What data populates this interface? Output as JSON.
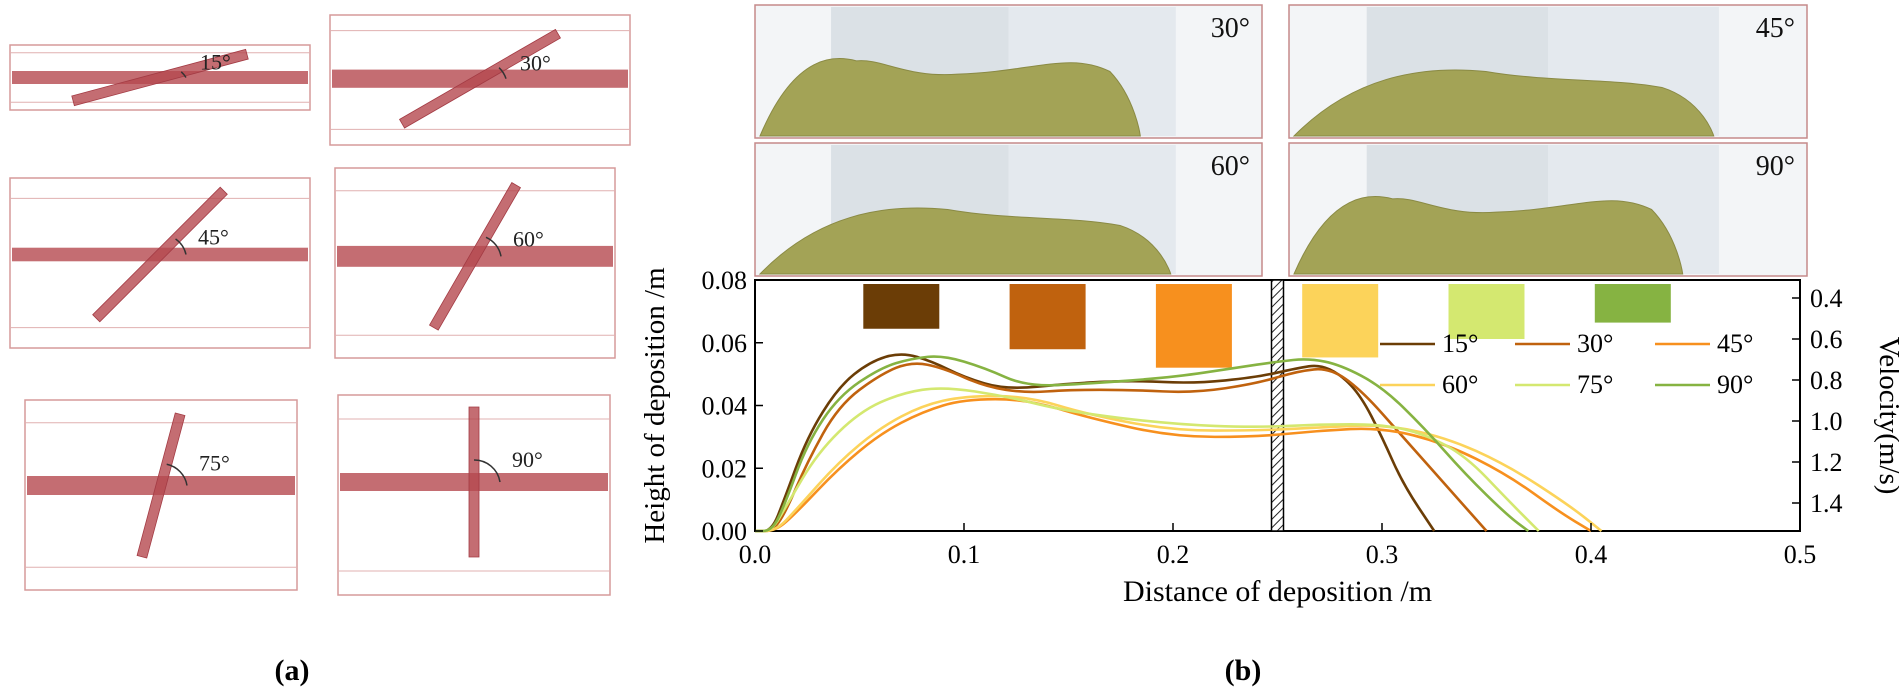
{
  "panel_a": {
    "label": "(a)",
    "diagrams": [
      {
        "angle": 15,
        "text": "15°"
      },
      {
        "angle": 30,
        "text": "30°"
      },
      {
        "angle": 45,
        "text": "45°"
      },
      {
        "angle": 60,
        "text": "60°"
      },
      {
        "angle": 75,
        "text": "75°"
      },
      {
        "angle": 90,
        "text": "90°"
      }
    ]
  },
  "panel_b": {
    "label": "(b)",
    "snapshots": [
      "30°",
      "45°",
      "60°",
      "90°"
    ]
  },
  "chart_data": {
    "type": "line",
    "xlabel": "Distance of deposition /m",
    "ylabel": "Height of deposition /m",
    "y2label": "Velocity(m/s)",
    "xlim": [
      0.0,
      0.5
    ],
    "ylim": [
      0.0,
      0.08
    ],
    "xticks": [
      "0.0",
      "0.1",
      "0.2",
      "0.3",
      "0.4",
      "0.5"
    ],
    "yticks": [
      "0.00",
      "0.02",
      "0.04",
      "0.06",
      "0.08"
    ],
    "y2ticks": [
      "0.4",
      "0.6",
      "0.8",
      "1.0",
      "1.2",
      "1.4"
    ],
    "y2lim": [
      0.3,
      1.5
    ],
    "obstacle_x": 0.25,
    "velocity_bars": [
      {
        "x": 0.07,
        "v": 0.55,
        "color": "#6b3d06"
      },
      {
        "x": 0.14,
        "v": 0.65,
        "color": "#c0620e"
      },
      {
        "x": 0.21,
        "v": 0.74,
        "color": "#f7901e"
      },
      {
        "x": 0.28,
        "v": 0.69,
        "color": "#fcd35a"
      },
      {
        "x": 0.35,
        "v": 0.6,
        "color": "#d4e870"
      },
      {
        "x": 0.42,
        "v": 0.52,
        "color": "#86b342"
      }
    ],
    "series": [
      {
        "name": "15°",
        "color": "#6b3d06",
        "x": [
          0.0,
          0.008,
          0.014,
          0.025,
          0.04,
          0.055,
          0.07,
          0.085,
          0.1,
          0.12,
          0.15,
          0.18,
          0.21,
          0.24,
          0.26,
          0.27,
          0.28,
          0.29,
          0.3,
          0.31,
          0.325
        ],
        "y": [
          0.0,
          0.0,
          0.01,
          0.03,
          0.046,
          0.054,
          0.057,
          0.054,
          0.049,
          0.045,
          0.047,
          0.048,
          0.047,
          0.049,
          0.052,
          0.053,
          0.05,
          0.043,
          0.03,
          0.015,
          0.0
        ]
      },
      {
        "name": "30°",
        "color": "#c0620e",
        "x": [
          0.0,
          0.008,
          0.014,
          0.025,
          0.04,
          0.06,
          0.075,
          0.09,
          0.11,
          0.13,
          0.15,
          0.18,
          0.21,
          0.24,
          0.26,
          0.275,
          0.29,
          0.31,
          0.33,
          0.35
        ],
        "y": [
          0.0,
          0.0,
          0.005,
          0.022,
          0.04,
          0.05,
          0.054,
          0.052,
          0.046,
          0.044,
          0.045,
          0.045,
          0.044,
          0.047,
          0.051,
          0.052,
          0.045,
          0.03,
          0.015,
          0.0
        ]
      },
      {
        "name": "45°",
        "color": "#f7901e",
        "x": [
          0.0,
          0.01,
          0.02,
          0.04,
          0.06,
          0.08,
          0.1,
          0.13,
          0.16,
          0.2,
          0.24,
          0.27,
          0.3,
          0.33,
          0.36,
          0.385,
          0.4
        ],
        "y": [
          0.0,
          0.0,
          0.006,
          0.02,
          0.031,
          0.038,
          0.042,
          0.042,
          0.036,
          0.03,
          0.03,
          0.032,
          0.033,
          0.028,
          0.018,
          0.006,
          0.0
        ]
      },
      {
        "name": "60°",
        "color": "#fcd35a",
        "x": [
          0.0,
          0.01,
          0.02,
          0.04,
          0.06,
          0.08,
          0.1,
          0.13,
          0.16,
          0.2,
          0.24,
          0.27,
          0.3,
          0.33,
          0.36,
          0.39,
          0.405
        ],
        "y": [
          0.0,
          0.0,
          0.007,
          0.022,
          0.033,
          0.04,
          0.043,
          0.043,
          0.037,
          0.032,
          0.032,
          0.033,
          0.034,
          0.03,
          0.021,
          0.008,
          0.0
        ]
      },
      {
        "name": "75°",
        "color": "#d4e870",
        "x": [
          0.0,
          0.008,
          0.015,
          0.03,
          0.05,
          0.07,
          0.09,
          0.12,
          0.15,
          0.2,
          0.24,
          0.27,
          0.3,
          0.32,
          0.34,
          0.36,
          0.375
        ],
        "y": [
          0.0,
          0.0,
          0.008,
          0.025,
          0.038,
          0.044,
          0.046,
          0.043,
          0.038,
          0.034,
          0.033,
          0.034,
          0.034,
          0.031,
          0.024,
          0.01,
          0.0
        ]
      },
      {
        "name": "90°",
        "color": "#86b342",
        "x": [
          0.0,
          0.008,
          0.014,
          0.025,
          0.04,
          0.06,
          0.075,
          0.09,
          0.11,
          0.13,
          0.16,
          0.2,
          0.23,
          0.25,
          0.265,
          0.28,
          0.3,
          0.32,
          0.34,
          0.36,
          0.37
        ],
        "y": [
          0.0,
          0.0,
          0.008,
          0.028,
          0.043,
          0.052,
          0.055,
          0.056,
          0.052,
          0.046,
          0.047,
          0.049,
          0.052,
          0.054,
          0.055,
          0.053,
          0.046,
          0.033,
          0.018,
          0.005,
          0.0
        ]
      }
    ]
  }
}
